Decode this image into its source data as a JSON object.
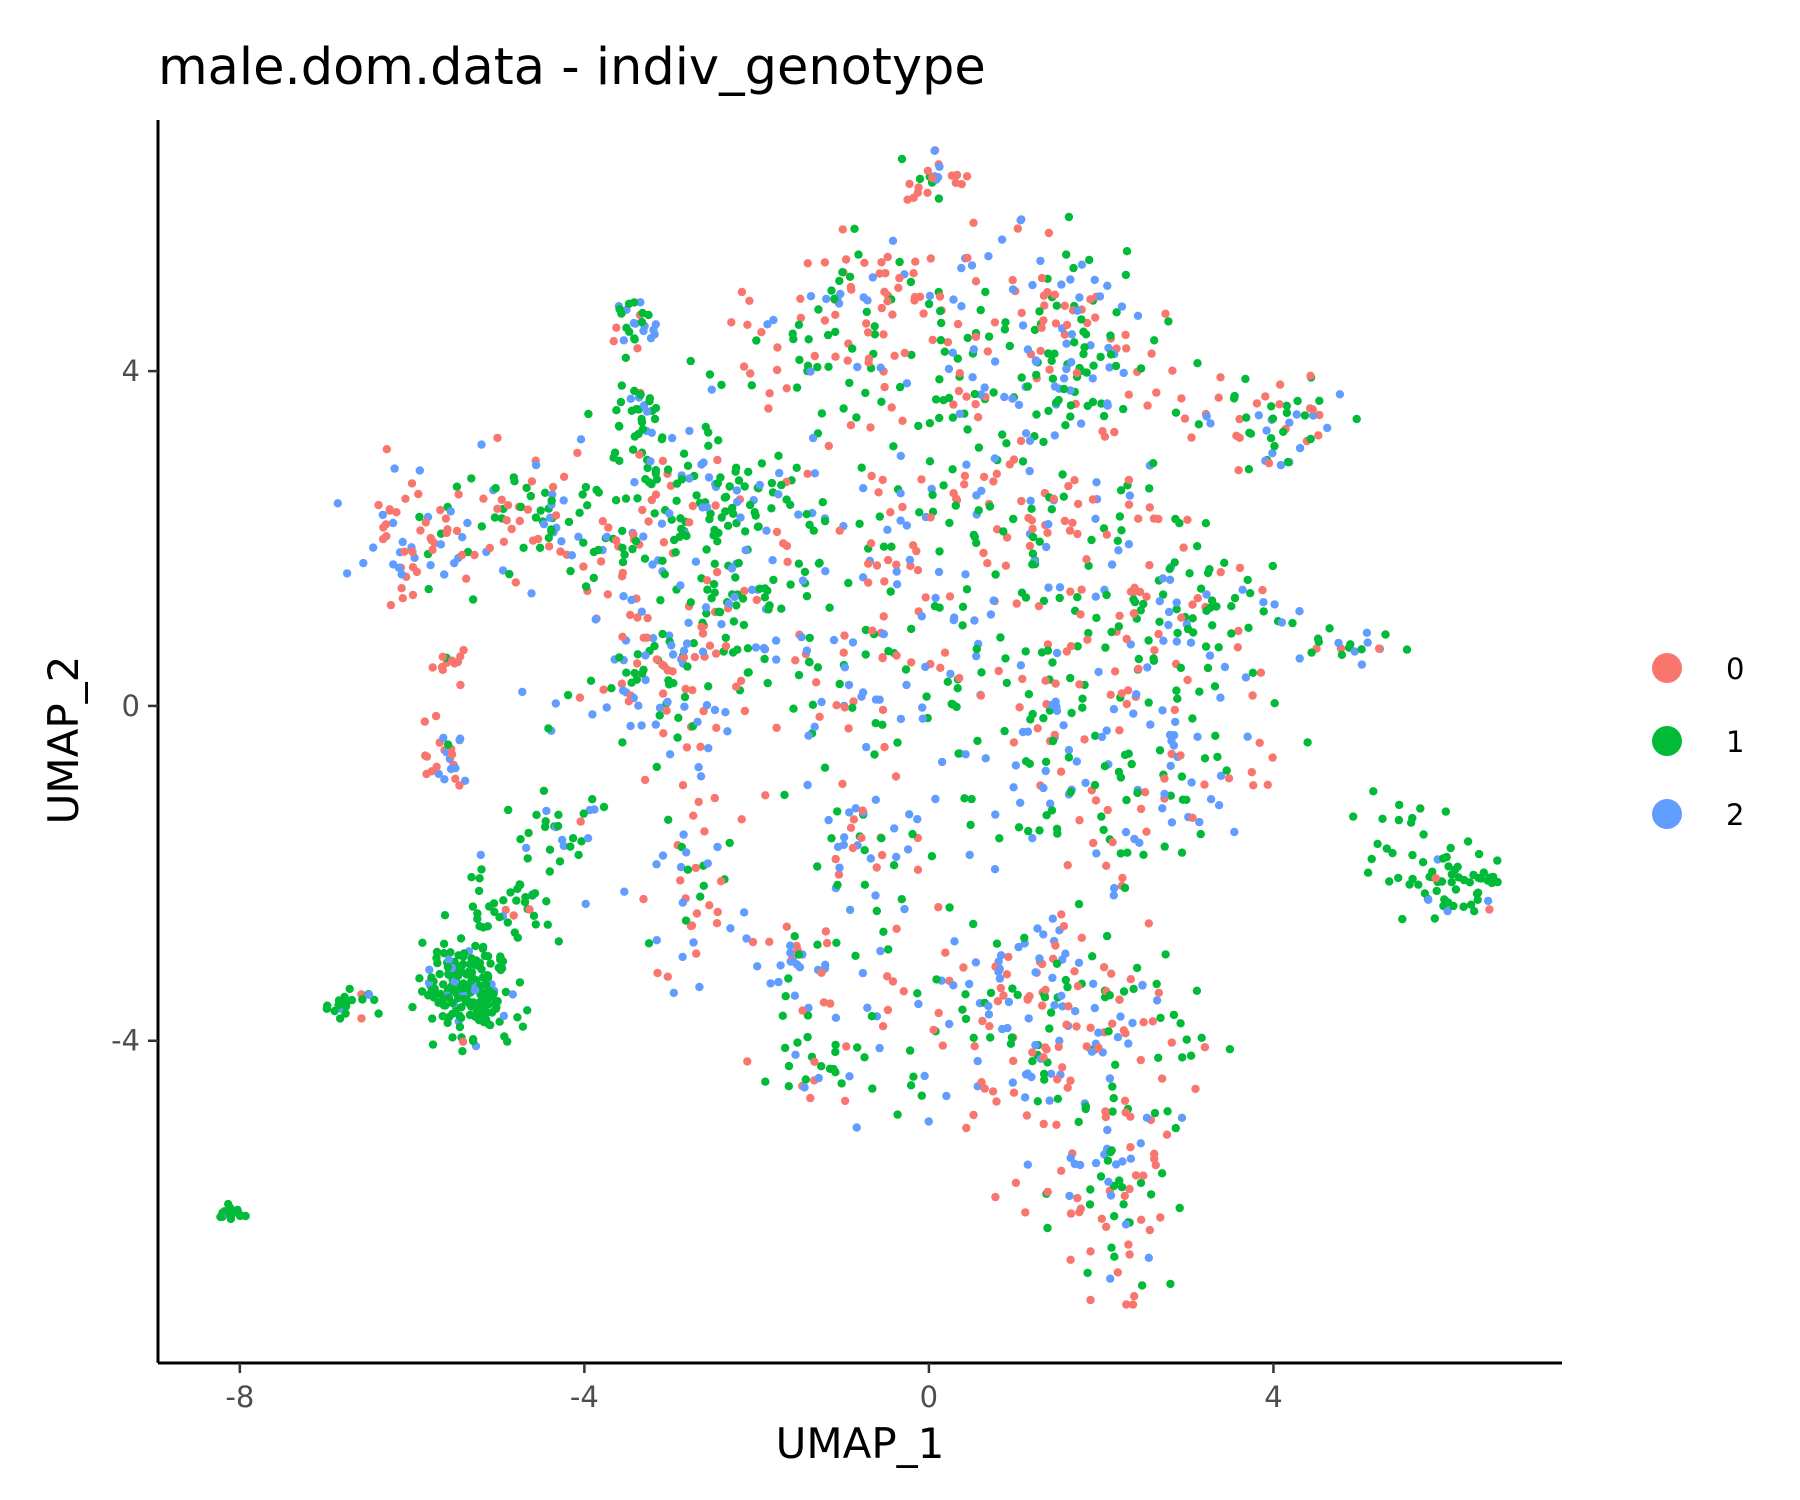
{
  "chart_data": {
    "type": "scatter",
    "title": "male.dom.data - indiv_genotype",
    "xlabel": "UMAP_1",
    "ylabel": "UMAP_2",
    "xlim": [
      -8.95,
      7.35
    ],
    "ylim": [
      -7.85,
      7.0
    ],
    "x_ticks": [
      -8,
      -4,
      0,
      4
    ],
    "x_tick_labels": [
      "-8",
      "-4",
      "0",
      "4"
    ],
    "y_ticks": [
      -4,
      0,
      4
    ],
    "y_tick_labels": [
      "-4",
      "0",
      "4"
    ],
    "grid": false,
    "legend_position": "right",
    "colors": {
      "0": "#F8766D",
      "1": "#00BA38",
      "2": "#619CFF"
    },
    "series": [
      {
        "name": "0",
        "color": "#F8766D"
      },
      {
        "name": "1",
        "color": "#00BA38"
      },
      {
        "name": "2",
        "color": "#619CFF"
      }
    ],
    "clusters": [
      {
        "cx": -8.1,
        "cy": -6.05,
        "sx": 0.06,
        "sy": 0.06,
        "n": 18,
        "w": [
          0.05,
          0.9,
          0.05
        ]
      },
      {
        "cx": -6.7,
        "cy": -3.55,
        "sx": 0.18,
        "sy": 0.1,
        "n": 20,
        "w": [
          0.1,
          0.85,
          0.05
        ]
      },
      {
        "cx": -5.35,
        "cy": -3.35,
        "sx": 0.26,
        "sy": 0.3,
        "n": 190,
        "w": [
          0.04,
          0.86,
          0.1
        ]
      },
      {
        "cx": -4.75,
        "cy": -2.3,
        "sx": 0.3,
        "sy": 0.3,
        "n": 45,
        "w": [
          0.08,
          0.72,
          0.2
        ]
      },
      {
        "cx": -4.2,
        "cy": -1.45,
        "sx": 0.22,
        "sy": 0.25,
        "n": 25,
        "w": [
          0.05,
          0.75,
          0.2
        ]
      },
      {
        "cx": -6.0,
        "cy": 1.95,
        "sx": 0.3,
        "sy": 0.32,
        "n": 55,
        "w": [
          0.5,
          0.05,
          0.45
        ]
      },
      {
        "cx": -5.6,
        "cy": 0.45,
        "sx": 0.1,
        "sy": 0.12,
        "n": 12,
        "w": [
          0.85,
          0.05,
          0.1
        ]
      },
      {
        "cx": -5.65,
        "cy": -0.65,
        "sx": 0.18,
        "sy": 0.25,
        "n": 25,
        "w": [
          0.5,
          0.05,
          0.45
        ]
      },
      {
        "cx": -4.8,
        "cy": 2.3,
        "sx": 0.5,
        "sy": 0.3,
        "n": 60,
        "w": [
          0.45,
          0.35,
          0.2
        ]
      },
      {
        "cx": -3.5,
        "cy": 1.9,
        "sx": 0.7,
        "sy": 0.55,
        "n": 110,
        "w": [
          0.3,
          0.4,
          0.3
        ]
      },
      {
        "cx": -2.7,
        "cy": 2.6,
        "sx": 0.6,
        "sy": 0.35,
        "n": 90,
        "w": [
          0.05,
          0.8,
          0.15
        ]
      },
      {
        "cx": -3.4,
        "cy": 3.5,
        "sx": 0.18,
        "sy": 0.22,
        "n": 30,
        "w": [
          0.1,
          0.75,
          0.15
        ]
      },
      {
        "cx": -3.35,
        "cy": 4.5,
        "sx": 0.15,
        "sy": 0.2,
        "n": 28,
        "w": [
          0.3,
          0.3,
          0.4
        ]
      },
      {
        "cx": -3.2,
        "cy": 0.3,
        "sx": 0.55,
        "sy": 0.45,
        "n": 95,
        "w": [
          0.35,
          0.3,
          0.35
        ]
      },
      {
        "cx": -2.2,
        "cy": 1.2,
        "sx": 0.45,
        "sy": 0.4,
        "n": 50,
        "w": [
          0.2,
          0.45,
          0.35
        ]
      },
      {
        "cx": -1.5,
        "cy": 4.3,
        "sx": 0.6,
        "sy": 0.35,
        "n": 55,
        "w": [
          0.45,
          0.4,
          0.15
        ]
      },
      {
        "cx": -0.6,
        "cy": 5.05,
        "sx": 0.45,
        "sy": 0.3,
        "n": 55,
        "w": [
          0.45,
          0.25,
          0.3
        ]
      },
      {
        "cx": 0.1,
        "cy": 6.3,
        "sx": 0.2,
        "sy": 0.2,
        "n": 25,
        "w": [
          0.4,
          0.3,
          0.3
        ]
      },
      {
        "cx": 0.6,
        "cy": 4.2,
        "sx": 0.55,
        "sy": 0.5,
        "n": 85,
        "w": [
          0.35,
          0.45,
          0.2
        ]
      },
      {
        "cx": 1.55,
        "cy": 4.8,
        "sx": 0.45,
        "sy": 0.45,
        "n": 60,
        "w": [
          0.3,
          0.4,
          0.3
        ]
      },
      {
        "cx": 1.9,
        "cy": 3.8,
        "sx": 0.5,
        "sy": 0.35,
        "n": 60,
        "w": [
          0.3,
          0.35,
          0.35
        ]
      },
      {
        "cx": -0.3,
        "cy": 2.3,
        "sx": 1.1,
        "sy": 0.8,
        "n": 130,
        "w": [
          0.3,
          0.45,
          0.25
        ]
      },
      {
        "cx": 1.4,
        "cy": 2.0,
        "sx": 0.8,
        "sy": 0.6,
        "n": 110,
        "w": [
          0.4,
          0.4,
          0.2
        ]
      },
      {
        "cx": -1.0,
        "cy": 0.3,
        "sx": 1.0,
        "sy": 0.65,
        "n": 110,
        "w": [
          0.35,
          0.35,
          0.3
        ]
      },
      {
        "cx": 1.4,
        "cy": -0.1,
        "sx": 0.75,
        "sy": 0.6,
        "n": 90,
        "w": [
          0.3,
          0.45,
          0.25
        ]
      },
      {
        "cx": 2.6,
        "cy": 0.8,
        "sx": 0.6,
        "sy": 0.6,
        "n": 60,
        "w": [
          0.35,
          0.45,
          0.2
        ]
      },
      {
        "cx": 3.5,
        "cy": 1.2,
        "sx": 0.45,
        "sy": 0.45,
        "n": 45,
        "w": [
          0.2,
          0.5,
          0.3
        ]
      },
      {
        "cx": 3.9,
        "cy": 3.35,
        "sx": 0.55,
        "sy": 0.35,
        "n": 60,
        "w": [
          0.35,
          0.35,
          0.3
        ]
      },
      {
        "cx": 5.0,
        "cy": 0.75,
        "sx": 0.45,
        "sy": 0.12,
        "n": 20,
        "w": [
          0.15,
          0.55,
          0.3
        ]
      },
      {
        "cx": 2.0,
        "cy": -1.3,
        "sx": 0.6,
        "sy": 0.4,
        "n": 55,
        "w": [
          0.3,
          0.3,
          0.4
        ]
      },
      {
        "cx": 3.0,
        "cy": -0.7,
        "sx": 0.5,
        "sy": 0.5,
        "n": 40,
        "w": [
          0.3,
          0.4,
          0.3
        ]
      },
      {
        "cx": -0.7,
        "cy": -1.7,
        "sx": 0.45,
        "sy": 0.4,
        "n": 50,
        "w": [
          0.25,
          0.4,
          0.35
        ]
      },
      {
        "cx": -2.8,
        "cy": -2.4,
        "sx": 0.3,
        "sy": 0.55,
        "n": 45,
        "w": [
          0.5,
          0.3,
          0.2
        ]
      },
      {
        "cx": -1.4,
        "cy": -3.1,
        "sx": 0.55,
        "sy": 0.45,
        "n": 45,
        "w": [
          0.3,
          0.35,
          0.35
        ]
      },
      {
        "cx": -1.1,
        "cy": -4.3,
        "sx": 0.5,
        "sy": 0.3,
        "n": 35,
        "w": [
          0.25,
          0.4,
          0.35
        ]
      },
      {
        "cx": 0.8,
        "cy": -3.6,
        "sx": 0.7,
        "sy": 0.5,
        "n": 80,
        "w": [
          0.3,
          0.35,
          0.35
        ]
      },
      {
        "cx": 1.7,
        "cy": -3.2,
        "sx": 0.55,
        "sy": 0.45,
        "n": 65,
        "w": [
          0.35,
          0.35,
          0.3
        ]
      },
      {
        "cx": 1.5,
        "cy": -4.5,
        "sx": 0.6,
        "sy": 0.45,
        "n": 75,
        "w": [
          0.35,
          0.4,
          0.25
        ]
      },
      {
        "cx": 2.1,
        "cy": -5.6,
        "sx": 0.4,
        "sy": 0.45,
        "n": 55,
        "w": [
          0.35,
          0.45,
          0.2
        ]
      },
      {
        "cx": 2.3,
        "cy": -6.6,
        "sx": 0.25,
        "sy": 0.35,
        "n": 22,
        "w": [
          0.5,
          0.3,
          0.2
        ]
      },
      {
        "cx": 2.9,
        "cy": -4.1,
        "sx": 0.2,
        "sy": 0.5,
        "n": 14,
        "w": [
          0.25,
          0.6,
          0.15
        ]
      },
      {
        "cx": 6.15,
        "cy": -2.15,
        "sx": 0.25,
        "sy": 0.25,
        "n": 50,
        "w": [
          0.05,
          0.9,
          0.05
        ]
      },
      {
        "cx": 5.4,
        "cy": -1.5,
        "sx": 0.3,
        "sy": 0.25,
        "n": 14,
        "w": [
          0.05,
          0.9,
          0.05
        ]
      },
      {
        "cx": 5.6,
        "cy": -2.05,
        "sx": 0.2,
        "sy": 0.05,
        "n": 10,
        "w": [
          0.05,
          0.9,
          0.05
        ]
      }
    ]
  }
}
